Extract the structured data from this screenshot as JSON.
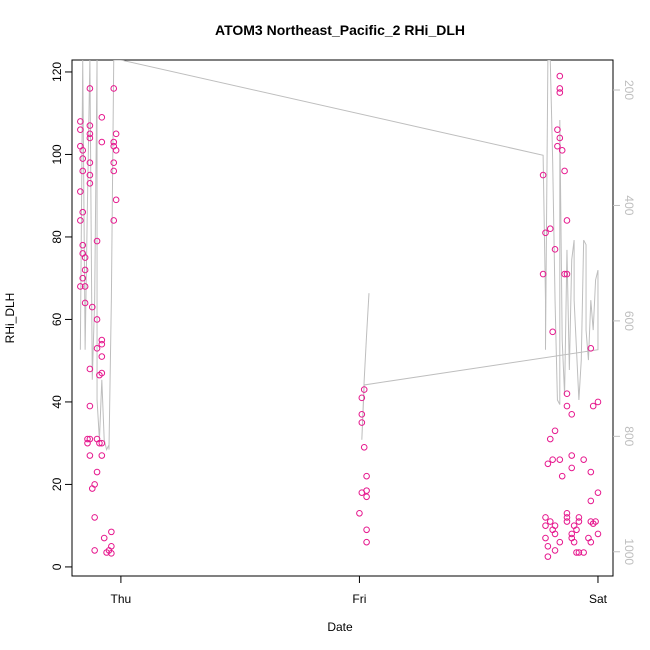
{
  "chart_data": {
    "type": "scatter",
    "title": "ATOM3 Northeast_Pacific_2 RHi_DLH",
    "xlabel": "Date",
    "ylabel": "RHi_DLH",
    "xlim": [
      -0.205,
      2.063
    ],
    "xticks": [
      {
        "value": 0,
        "label": "Thu"
      },
      {
        "value": 1,
        "label": "Fri"
      },
      {
        "value": 2,
        "label": "Sat"
      }
    ],
    "ylim": [
      -2.2,
      122.9
    ],
    "yticks": [
      0,
      20,
      40,
      60,
      80,
      100,
      120
    ],
    "y2lim": [
      1042,
      148
    ],
    "y2ticks": [
      200,
      400,
      600,
      800,
      1000
    ],
    "series": [
      {
        "type": "scatter",
        "color": "#e6188e",
        "x": [
          -0.17,
          -0.17,
          -0.17,
          -0.16,
          -0.16,
          -0.16,
          -0.17,
          -0.17,
          -0.16,
          -0.16,
          -0.16,
          -0.15,
          -0.15,
          -0.16,
          -0.17,
          -0.15,
          -0.15,
          -0.12,
          -0.13,
          -0.13,
          -0.12,
          -0.11,
          -0.1,
          -0.11,
          -0.11,
          -0.13,
          -0.14,
          -0.14,
          -0.13,
          -0.13,
          -0.13,
          -0.13,
          -0.13,
          -0.13,
          -0.13,
          -0.13,
          -0.1,
          -0.1,
          -0.1,
          -0.08,
          -0.08,
          -0.08,
          -0.09,
          -0.08,
          -0.1,
          -0.09,
          -0.08,
          -0.08,
          -0.08,
          -0.08,
          -0.07,
          -0.06,
          -0.05,
          -0.04,
          -0.04,
          -0.04,
          -0.03,
          -0.03,
          -0.03,
          -0.02,
          -0.02,
          -0.03,
          -0.03,
          -0.02,
          -0.03,
          1.02,
          1.01,
          1.01,
          1.01,
          1.02,
          1.03,
          1.01,
          1.03,
          1.03,
          1.0,
          1.03,
          1.03,
          1.77,
          1.78,
          1.8,
          1.77,
          1.82,
          1.81,
          1.84,
          1.84,
          1.84,
          1.83,
          1.84,
          1.83,
          1.85,
          1.86,
          1.87,
          1.86,
          1.87,
          1.87,
          1.87,
          1.89,
          1.8,
          1.82,
          1.79,
          1.81,
          1.84,
          1.89,
          1.85,
          1.89,
          1.94,
          1.97,
          1.97,
          2.0,
          1.98,
          2.0,
          1.97,
          1.78,
          1.78,
          1.78,
          1.79,
          1.79,
          1.8,
          1.81,
          1.82,
          1.82,
          1.82,
          1.84,
          1.87,
          1.87,
          1.87,
          1.89,
          1.89,
          1.9,
          1.91,
          1.9,
          1.92,
          1.92,
          1.91,
          1.92,
          1.94,
          1.96,
          1.97,
          1.97,
          1.99,
          1.98,
          2.0
        ],
        "values": [
          108,
          106,
          102,
          101,
          99,
          96,
          91,
          84,
          86,
          78,
          76,
          75,
          72,
          70,
          68,
          68,
          64,
          63,
          48,
          39,
          19,
          20,
          23,
          12,
          4,
          31,
          30,
          31,
          27,
          116,
          107,
          105,
          104,
          98,
          95,
          93,
          79,
          60,
          53,
          55,
          54,
          51,
          46.5,
          47,
          31,
          30,
          30,
          27,
          109,
          103,
          7,
          3.5,
          4,
          3.3,
          8.5,
          5,
          116,
          103,
          102,
          101,
          105,
          98,
          96,
          89,
          84,
          43,
          41,
          37,
          35,
          29,
          22,
          18,
          18.5,
          17,
          13,
          9,
          6,
          95,
          81,
          82,
          71,
          77,
          57,
          119,
          116,
          115,
          106,
          104,
          102,
          101,
          96,
          84,
          71,
          71,
          42,
          39,
          37,
          31,
          33,
          25,
          26,
          26,
          27,
          22,
          24,
          26,
          23,
          16,
          18,
          39,
          40,
          53,
          12,
          10,
          7,
          5,
          2.5,
          11,
          9,
          10,
          8,
          4,
          6,
          13,
          12,
          11,
          8,
          7,
          10,
          9,
          6,
          11,
          12,
          3.5,
          3.5,
          3.5,
          7,
          6,
          11,
          11,
          10.5,
          8
        ]
      },
      {
        "type": "line",
        "axis": "y2",
        "color": "#bebebe",
        "x": [
          -0.17,
          -0.16,
          -0.16,
          -0.15,
          -0.14,
          -0.13,
          -0.12,
          -0.11,
          -0.1,
          -0.1,
          -0.09,
          -0.08,
          -0.07,
          -0.06,
          -0.05,
          -0.05,
          -0.04,
          -0.03,
          0,
          1.77,
          1.78,
          1.78,
          1.79,
          1.8,
          1.81,
          1.82,
          1.83,
          1.84,
          1.84,
          1.85,
          1.86,
          1.87,
          1.88,
          1.89,
          1.9,
          1.9,
          1.91,
          1.92,
          1.93,
          1.94,
          1.95,
          1.95,
          1.96,
          1.97,
          1.98,
          1.99,
          2.0,
          2.0,
          1.02,
          1.01,
          1.02,
          1.03,
          1.04
        ],
        "values": [
          650,
          148,
          148,
          650,
          390,
          148,
          702,
          564,
          148,
          737,
          806,
          702,
          806,
          823,
          815,
          823,
          564,
          148,
          148,
          313,
          564,
          650,
          148,
          148,
          321,
          564,
          737,
          745,
          252,
          633,
          728,
          477,
          685,
          494,
          460,
          564,
          650,
          737,
          668,
          460,
          468,
          616,
          668,
          564,
          616,
          529,
          512,
          650,
          711,
          806,
          702,
          624,
          552
        ]
      }
    ]
  }
}
